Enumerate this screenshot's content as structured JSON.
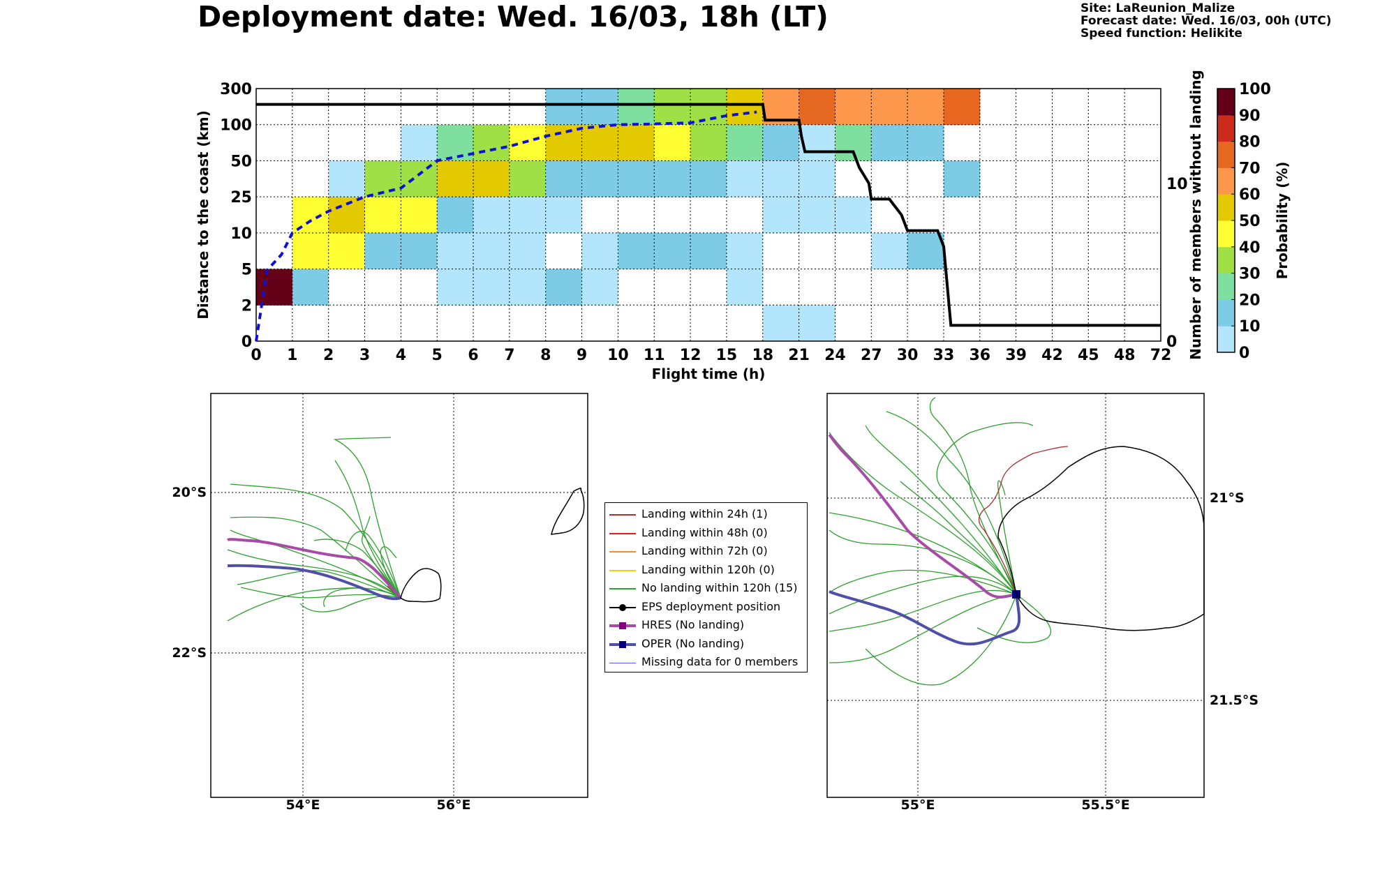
{
  "header": {
    "title": "Deployment date: Wed. 16/03, 18h (LT)",
    "site": "Site: LaReunion_Malize",
    "forecast": "Forecast date: Wed. 16/03, 00h (UTC)",
    "speed": "Speed function: Helikite"
  },
  "colors": {
    "c0": "#b3e5fc",
    "c10": "#7ecbe5",
    "c20": "#7fdf9e",
    "c30": "#9fe046",
    "c40": "#ffff33",
    "c50": "#e3c900",
    "c60": "#fd974b",
    "c70": "#e6671f",
    "c80": "#cc2a1a",
    "c90": "#b20000",
    "c100": "#650019",
    "hres": "#a64ca6",
    "oper": "#4f4fa8",
    "members": "#2ca02c",
    "landing": "#a83232",
    "median": "#1010d0"
  },
  "chart_data": [
    {
      "type": "heatmap",
      "title": "",
      "xlabel": "Flight time (h)",
      "ylabel": "Distance to the coast (km)",
      "y2label": "Number of members without landing",
      "colorbar_label": "Probability (%)",
      "colorbar_ticks": [
        "0",
        "10",
        "20",
        "30",
        "40",
        "50",
        "60",
        "70",
        "80",
        "90",
        "100"
      ],
      "x_ticks": [
        "0",
        "1",
        "2",
        "3",
        "4",
        "5",
        "6",
        "7",
        "8",
        "9",
        "10",
        "11",
        "12",
        "15",
        "18",
        "21",
        "24",
        "27",
        "30",
        "33",
        "36",
        "39",
        "42",
        "45",
        "48",
        "72"
      ],
      "y_ticks": [
        "0",
        "2",
        "5",
        "10",
        "25",
        "50",
        "100",
        "300"
      ],
      "y2_ticks": [
        "0",
        "10"
      ],
      "y2lim": [
        0,
        16
      ],
      "grid": true,
      "cells_note": "cells: [flight-time bin index, distance bin index, probability class]",
      "cells": [
        [
          0,
          1,
          100
        ],
        [
          1,
          1,
          10
        ],
        [
          1,
          2,
          40
        ],
        [
          2,
          2,
          40
        ],
        [
          1,
          3,
          40
        ],
        [
          2,
          3,
          50
        ],
        [
          3,
          3,
          40
        ],
        [
          4,
          3,
          40
        ],
        [
          2,
          4,
          0
        ],
        [
          3,
          4,
          30
        ],
        [
          4,
          4,
          30
        ],
        [
          4,
          5,
          0
        ],
        [
          5,
          5,
          20
        ],
        [
          6,
          5,
          30
        ],
        [
          7,
          5,
          40
        ],
        [
          8,
          6,
          10
        ],
        [
          9,
          6,
          10
        ],
        [
          10,
          6,
          20
        ],
        [
          11,
          6,
          30
        ],
        [
          12,
          6,
          30
        ],
        [
          13,
          6,
          50
        ],
        [
          14,
          6,
          60
        ],
        [
          15,
          6,
          70
        ],
        [
          16,
          6,
          60
        ],
        [
          17,
          6,
          60
        ],
        [
          18,
          6,
          60
        ],
        [
          19,
          6,
          70
        ],
        [
          5,
          4,
          50
        ],
        [
          6,
          4,
          50
        ],
        [
          7,
          4,
          30
        ],
        [
          8,
          5,
          50
        ],
        [
          9,
          5,
          50
        ],
        [
          10,
          5,
          50
        ],
        [
          11,
          5,
          40
        ],
        [
          12,
          5,
          30
        ],
        [
          13,
          5,
          20
        ],
        [
          14,
          5,
          10
        ],
        [
          15,
          5,
          0
        ],
        [
          16,
          5,
          20
        ],
        [
          17,
          5,
          10
        ],
        [
          18,
          5,
          10
        ],
        [
          8,
          4,
          10
        ],
        [
          9,
          4,
          10
        ],
        [
          10,
          4,
          10
        ],
        [
          11,
          4,
          10
        ],
        [
          12,
          4,
          10
        ],
        [
          13,
          4,
          0
        ],
        [
          14,
          4,
          0
        ],
        [
          15,
          4,
          0
        ],
        [
          19,
          4,
          10
        ],
        [
          5,
          3,
          10
        ],
        [
          6,
          3,
          0
        ],
        [
          7,
          3,
          0
        ],
        [
          8,
          3,
          0
        ],
        [
          14,
          3,
          0
        ],
        [
          15,
          3,
          0
        ],
        [
          16,
          3,
          0
        ],
        [
          3,
          2,
          10
        ],
        [
          4,
          2,
          10
        ],
        [
          5,
          2,
          0
        ],
        [
          6,
          2,
          0
        ],
        [
          7,
          2,
          0
        ],
        [
          9,
          2,
          0
        ],
        [
          10,
          2,
          10
        ],
        [
          11,
          2,
          10
        ],
        [
          12,
          2,
          10
        ],
        [
          13,
          2,
          0
        ],
        [
          17,
          2,
          0
        ],
        [
          18,
          2,
          10
        ],
        [
          5,
          1,
          0
        ],
        [
          6,
          1,
          0
        ],
        [
          7,
          1,
          0
        ],
        [
          8,
          1,
          10
        ],
        [
          9,
          1,
          0
        ],
        [
          13,
          1,
          0
        ],
        [
          14,
          0,
          0
        ],
        [
          15,
          0,
          0
        ]
      ],
      "series": [
        {
          "name": "Number of members without landing",
          "style": "solid-step",
          "x": [
            0,
            18,
            18.2,
            21,
            21.2,
            21.5,
            25.5,
            26,
            26.8,
            27,
            28.5,
            29.5,
            30,
            32.5,
            33,
            33.6,
            36,
            72
          ],
          "y": [
            15,
            15,
            14,
            14,
            13,
            12,
            12,
            11,
            10,
            9,
            9,
            8,
            7,
            7,
            6,
            1,
            1,
            1
          ]
        },
        {
          "name": "median distance",
          "style": "dashed",
          "x": [
            0,
            0.3,
            0.7,
            1,
            1.5,
            2,
            3,
            4,
            5,
            6,
            7,
            8,
            9,
            10,
            11,
            12,
            15,
            17.5
          ],
          "y": [
            0,
            4.9,
            7,
            10,
            15,
            19,
            25,
            31,
            50,
            60,
            70,
            84,
            95,
            100,
            104,
            110,
            150,
            170
          ]
        }
      ]
    },
    {
      "type": "map",
      "name": "regional",
      "lat_ticks": [
        "20°S",
        "22°S"
      ],
      "lon_ticks": [
        "54°E",
        "56°E"
      ]
    },
    {
      "type": "map",
      "name": "zoom",
      "lat_ticks": [
        "21°S",
        "21.5°S"
      ],
      "lon_ticks": [
        "55°E",
        "55.5°E"
      ]
    }
  ],
  "legend": [
    {
      "label": "Landing within 24h (1)",
      "color": "#a83232",
      "marker": "none",
      "width": 2
    },
    {
      "label": "Landing within 48h (0)",
      "color": "#e41a1c",
      "marker": "none",
      "width": 2
    },
    {
      "label": "Landing within 72h (0)",
      "color": "#ff8c1a",
      "marker": "none",
      "width": 2
    },
    {
      "label": "Landing within 120h (0)",
      "color": "#e8d400",
      "marker": "none",
      "width": 2
    },
    {
      "label": "No landing within 120h (15)",
      "color": "#2ca02c",
      "marker": "none",
      "width": 2
    },
    {
      "label": "EPS deployment position",
      "color": "#000000",
      "marker": "circle",
      "width": 2
    },
    {
      "label": "HRES (No landing)",
      "color": "#a64ca6",
      "marker": "square",
      "width": 4
    },
    {
      "label": "OPER (No landing)",
      "color": "#4f4fa8",
      "marker": "square",
      "width": 4
    },
    {
      "label": "Missing data for 0 members",
      "color": "#5c5cff",
      "marker": "none",
      "width": 1
    }
  ]
}
